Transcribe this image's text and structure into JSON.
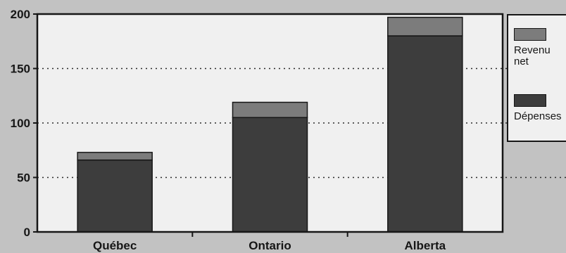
{
  "chart_data": {
    "type": "bar",
    "stacked": true,
    "categories": [
      "Québec",
      "Ontario",
      "Alberta"
    ],
    "series": [
      {
        "name": "Dépenses",
        "values": [
          66,
          105,
          180
        ],
        "color": "#3d3d3d"
      },
      {
        "name": "Revenu net",
        "values": [
          7,
          14,
          17
        ],
        "color": "#7c7c7c"
      }
    ],
    "ylim": [
      0,
      200
    ],
    "yticks": [
      0,
      50,
      100,
      150,
      200
    ],
    "grid": true,
    "grid_style": "dotted",
    "legend_position": "right",
    "title": "",
    "xlabel": "",
    "ylabel": "",
    "colors": {
      "background": "#c2c2c2",
      "plot_area": "#f0f0f0",
      "axis": "#161616",
      "gridline": "#2a2a2a"
    }
  },
  "legend": {
    "items": [
      {
        "label": "Revenu\nnet",
        "color": "#7c7c7c"
      },
      {
        "label": "Dépenses",
        "color": "#3d3d3d"
      }
    ]
  }
}
